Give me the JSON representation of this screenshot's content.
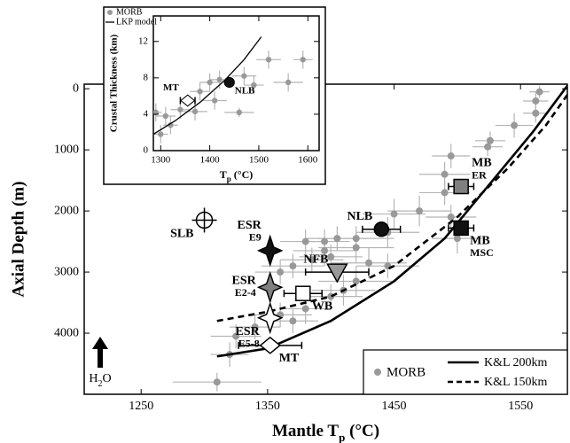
{
  "chart_data": [
    {
      "type": "scatter",
      "xlabel": [
        "Mantle T",
        "p",
        " (°C)"
      ],
      "ylabel": "Axial Depth (m)",
      "xlim": [
        1205,
        1587
      ],
      "ylim": [
        -75,
        5000
      ],
      "y_inverted": true,
      "xticks": [
        1250,
        1350,
        1450,
        1550
      ],
      "yticks": [
        0,
        1000,
        2000,
        3000,
        4000
      ],
      "series": [
        {
          "name": "MORB",
          "color": "#999999",
          "x": [
            1565,
            1562,
            1562,
            1545,
            1526,
            1524,
            1495,
            1490,
            1490,
            1470,
            1495,
            1500,
            1450,
            1445,
            1420,
            1405,
            1395,
            1380,
            1395,
            1420,
            1400,
            1385,
            1430,
            1445,
            1370,
            1360,
            1420,
            1410,
            1400,
            1380,
            1360,
            1370,
            1340,
            1320,
            1325,
            1310
          ],
          "y": [
            50,
            200,
            400,
            600,
            850,
            950,
            1100,
            1400,
            1700,
            2000,
            2100,
            2450,
            2050,
            2350,
            2450,
            2450,
            2500,
            2500,
            2650,
            2600,
            2750,
            2800,
            2850,
            2900,
            2900,
            3000,
            3150,
            3300,
            3400,
            3600,
            3700,
            3800,
            3900,
            4350,
            4050,
            4800
          ],
          "xerr": [
            8,
            10,
            10,
            15,
            12,
            12,
            15,
            20,
            20,
            25,
            20,
            20,
            25,
            25,
            30,
            25,
            20,
            20,
            25,
            30,
            25,
            25,
            30,
            25,
            25,
            20,
            30,
            25,
            25,
            20,
            25,
            20,
            20,
            15,
            20,
            35
          ],
          "yerr": [
            100,
            150,
            150,
            200,
            150,
            150,
            200,
            200,
            200,
            250,
            200,
            250,
            250,
            250,
            200,
            200,
            200,
            200,
            250,
            250,
            200,
            200,
            250,
            200,
            200,
            200,
            250,
            250,
            200,
            250,
            200,
            200,
            200,
            200,
            200,
            150
          ]
        }
      ],
      "lines": [
        {
          "name": "K&L 200km",
          "color": "#000000",
          "dash": false,
          "x": [
            1310,
            1350,
            1400,
            1450,
            1490,
            1530,
            1560,
            1587
          ],
          "y": [
            4380,
            4250,
            3800,
            3150,
            2450,
            1450,
            700,
            -50
          ]
        },
        {
          "name": "K&L 150km",
          "color": "#000000",
          "dash": true,
          "x": [
            1310,
            1350,
            1400,
            1450,
            1500,
            1540,
            1570,
            1587
          ],
          "y": [
            3800,
            3650,
            3400,
            2900,
            2100,
            1300,
            600,
            100
          ]
        }
      ],
      "samples": [
        {
          "label": [
            "SLB"
          ],
          "marker": "crosshair",
          "fill": "#ffffff",
          "x": 1300,
          "y": 2150,
          "label_side": "below-left"
        },
        {
          "label": [
            "ESR",
            "E9"
          ],
          "marker": "star",
          "fill": "#111111",
          "x": 1352,
          "y": 2650,
          "label_side": "above-left"
        },
        {
          "label": [
            "ESR",
            "E2-4"
          ],
          "marker": "star",
          "fill": "#808080",
          "x": 1352,
          "y": 3250,
          "label_side": "left"
        },
        {
          "label": [
            "ESR",
            "E5-8"
          ],
          "marker": "star",
          "fill": "#ffffff",
          "x": 1352,
          "y": 3750,
          "label_side": "below-left"
        },
        {
          "label": [
            "MT"
          ],
          "marker": "diamond",
          "fill": "#ffffff",
          "x": 1352,
          "y": 4200,
          "xerr": 25,
          "label_side": "right-below"
        },
        {
          "label": [
            "NFB"
          ],
          "marker": "triangle",
          "fill": "#999999",
          "x": 1405,
          "y": 3000,
          "xerr": 25,
          "label_side": "above-left"
        },
        {
          "label": [
            "WB"
          ],
          "marker": "square",
          "fill": "#ffffff",
          "x": 1378,
          "y": 3350,
          "xerr": 15,
          "label_side": "right-below"
        },
        {
          "label": [
            "NLB"
          ],
          "marker": "circle",
          "fill": "#111111",
          "x": 1440,
          "y": 2300,
          "xerr": 15,
          "label_side": "above-left"
        },
        {
          "label": [
            "MB",
            "ER"
          ],
          "marker": "square",
          "fill": "#808080",
          "x": 1503,
          "y": 1600,
          "xerr": 10,
          "label_side": "above-right"
        },
        {
          "label": [
            "MB",
            "MSC"
          ],
          "marker": "square",
          "fill": "#111111",
          "x": 1503,
          "y": 2280,
          "xerr": 10,
          "label_side": "right-below"
        }
      ],
      "annotation": [
        "H",
        "2",
        "O"
      ],
      "legend": "lower right"
    },
    {
      "type": "scatter",
      "xlabel": [
        "T",
        "p",
        " (°C)"
      ],
      "ylabel": "Crustal Thickness (km)",
      "xlim": [
        1285,
        1623
      ],
      "ylim": [
        0,
        14.8
      ],
      "xticks": [
        1300,
        1400,
        1500,
        1600
      ],
      "yticks": [
        0,
        4,
        8,
        12
      ],
      "series": [
        {
          "name": "MORB",
          "color": "#999999",
          "x": [
            1290,
            1300,
            1310,
            1320,
            1340,
            1370,
            1380,
            1400,
            1410,
            1420,
            1460,
            1470,
            1490,
            1520,
            1560,
            1590
          ],
          "y": [
            4.2,
            1.8,
            3.8,
            2.8,
            4.5,
            4.3,
            6.5,
            7.5,
            5.5,
            7.8,
            4.2,
            8.2,
            7.2,
            10,
            7.5,
            10
          ],
          "xerr": [
            12,
            15,
            20,
            15,
            20,
            25,
            20,
            20,
            25,
            20,
            30,
            25,
            20,
            25,
            30,
            20
          ],
          "yerr": [
            1,
            1,
            1,
            1,
            1,
            1,
            1,
            1,
            1,
            1,
            0.5,
            1,
            1,
            1,
            1,
            1
          ]
        }
      ],
      "lines": [
        {
          "name": "LKP model",
          "color": "#000000",
          "dash": false,
          "x": [
            1285,
            1330,
            1380,
            1430,
            1470,
            1505
          ],
          "y": [
            1.8,
            3.3,
            5.3,
            7.7,
            10,
            12.5
          ]
        }
      ],
      "samples": [
        {
          "label": [
            "NLB"
          ],
          "marker": "circle",
          "fill": "#111111",
          "x": 1440,
          "y": 7.5,
          "label_side": "below-right"
        },
        {
          "label": [
            "MT"
          ],
          "marker": "diamond",
          "fill": "#ffffff",
          "x": 1355,
          "y": 5.5,
          "xerr": 15,
          "label_side": "above-left"
        }
      ],
      "legend": "upper left"
    }
  ]
}
